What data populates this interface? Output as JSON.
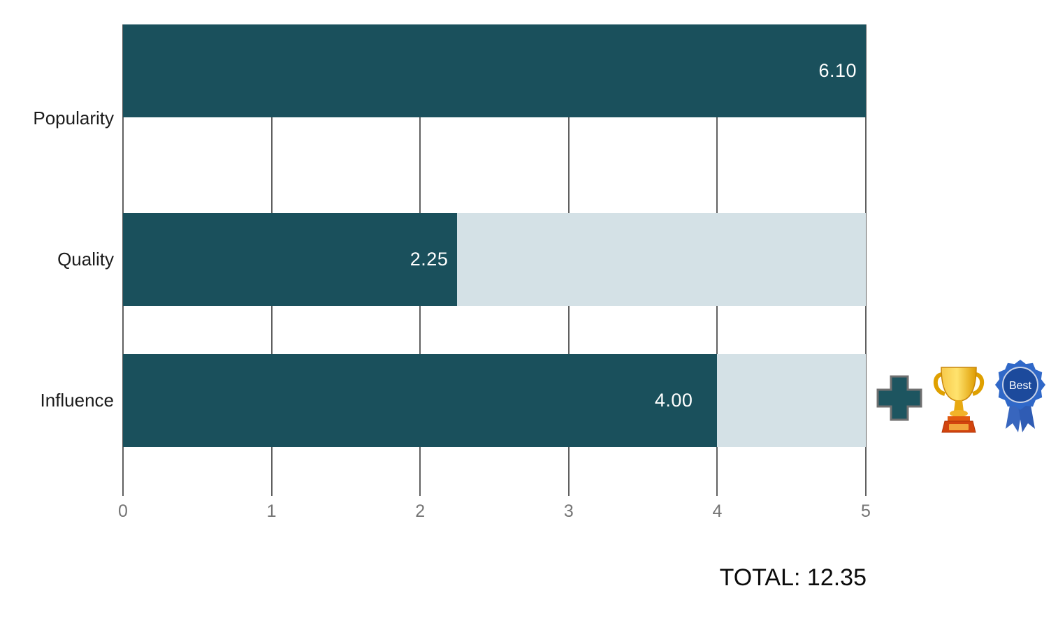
{
  "chart_data": {
    "type": "bar",
    "orientation": "horizontal",
    "title": "",
    "categories": [
      "Popularity",
      "Quality",
      "Influence"
    ],
    "values": [
      2.25,
      4.0,
      6.1
    ],
    "value_labels": [
      "2.25",
      "4.00",
      "6.10"
    ],
    "xlim": [
      0,
      5
    ],
    "x_ticks": [
      0,
      1,
      2,
      3,
      4,
      5
    ],
    "grid": true,
    "legend": false,
    "bar_color": "#1A505C",
    "track_color": "#D4E1E6",
    "gridline_color": "#606060",
    "tick_label_color": "#757575",
    "value_label_color": "#FFFFFF",
    "annotations": {
      "total_label": "TOTAL: 12.35",
      "best_ribbon_text": "Best",
      "icons": [
        "plus-icon",
        "trophy-icon",
        "best-ribbon-icon"
      ]
    }
  }
}
